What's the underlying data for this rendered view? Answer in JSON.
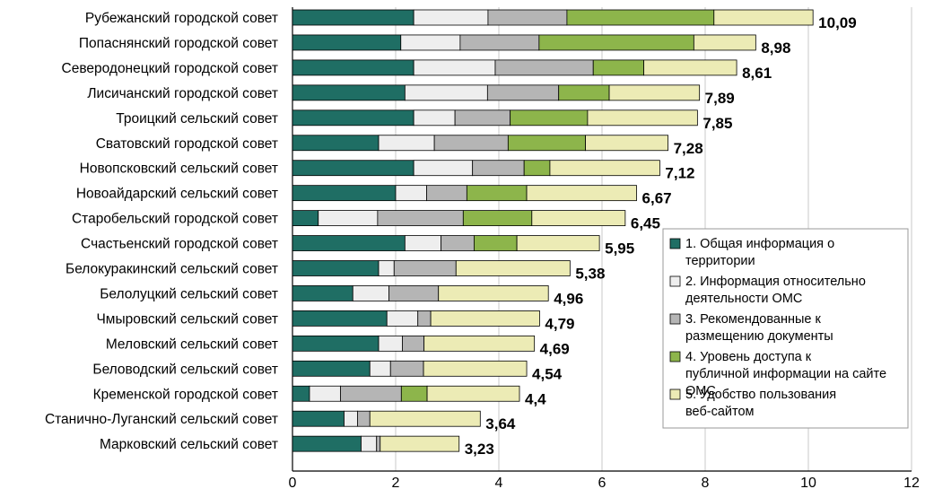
{
  "chart_data": {
    "type": "bar",
    "orientation": "horizontal",
    "stacked": true,
    "categories": [
      "Рубежанский городской совет",
      "Попаснянский городской совет",
      "Северодонецкий городской совет",
      "Лисичанский городской совет",
      "Троицкий сельский совет",
      "Сватовский городской совет",
      "Новопсковский сельский совет",
      "Новоайдарский сельский совет",
      "Старобельский городской совет",
      "Счастьенский городской совет",
      "Белокуракинский сельский совет",
      "Белолуцкий сельский совет",
      "Чмыровский сельский совет",
      "Меловский сельский совет",
      "Беловодский сельский совет",
      "Кременской городской совет",
      "Станично-Луганский сельский совет",
      "Марковский сельский совет"
    ],
    "series": [
      {
        "name": "1. Общая информация о территории",
        "color": "#1f6e64",
        "values": [
          2.35,
          2.1,
          2.35,
          2.18,
          2.35,
          1.67,
          2.35,
          2.0,
          0.5,
          2.18,
          1.67,
          1.17,
          1.83,
          1.67,
          1.5,
          0.33,
          1.0,
          1.33
        ]
      },
      {
        "name": "2. Информация относительно деятельности ОМС",
        "color": "#eeeeee",
        "values": [
          1.44,
          1.15,
          1.58,
          1.6,
          0.8,
          1.08,
          1.14,
          0.6,
          1.15,
          0.7,
          0.3,
          0.7,
          0.6,
          0.46,
          0.4,
          0.6,
          0.26,
          0.3
        ]
      },
      {
        "name": "3. Рекомендованные к размещению документы",
        "color": "#b5b5b5",
        "values": [
          1.53,
          1.53,
          1.9,
          1.38,
          1.07,
          1.43,
          1.0,
          0.78,
          1.66,
          0.64,
          1.2,
          0.96,
          0.25,
          0.42,
          0.64,
          1.18,
          0.24,
          0.07
        ]
      },
      {
        "name": "4. Уровень доступа к публичной информации на сайте ОМС",
        "color": "#8db54b",
        "values": [
          2.85,
          3.0,
          0.98,
          0.98,
          1.5,
          1.5,
          0.5,
          1.16,
          1.33,
          0.83,
          0.0,
          0.0,
          0.0,
          0.0,
          0.0,
          0.5,
          0.0,
          0.0
        ]
      },
      {
        "name": "5. Удобство пользования веб-сайтом",
        "color": "#ecebb5",
        "values": [
          1.92,
          1.2,
          1.8,
          1.75,
          2.13,
          1.6,
          2.13,
          2.13,
          1.81,
          1.6,
          2.21,
          2.13,
          2.11,
          2.14,
          2.0,
          1.79,
          2.14,
          1.53
        ]
      }
    ],
    "totals": [
      "10,09",
      "8,98",
      "8,61",
      "7,89",
      "7,85",
      "7,28",
      "7,12",
      "6,67",
      "6,45",
      "5,95",
      "5,38",
      "4,96",
      "4,79",
      "4,69",
      "4,54",
      "4,4",
      "3,64",
      "3,23"
    ],
    "total_values": [
      10.09,
      8.98,
      8.61,
      7.89,
      7.85,
      7.28,
      7.12,
      6.67,
      6.45,
      5.95,
      5.38,
      4.96,
      4.79,
      4.69,
      4.54,
      4.4,
      3.64,
      3.23
    ],
    "xlim": [
      0,
      12
    ],
    "xticks": [
      0,
      2,
      4,
      6,
      8,
      10,
      12
    ],
    "grid": "vertical",
    "legend_position": "right",
    "title": "",
    "xlabel": "",
    "ylabel": ""
  }
}
